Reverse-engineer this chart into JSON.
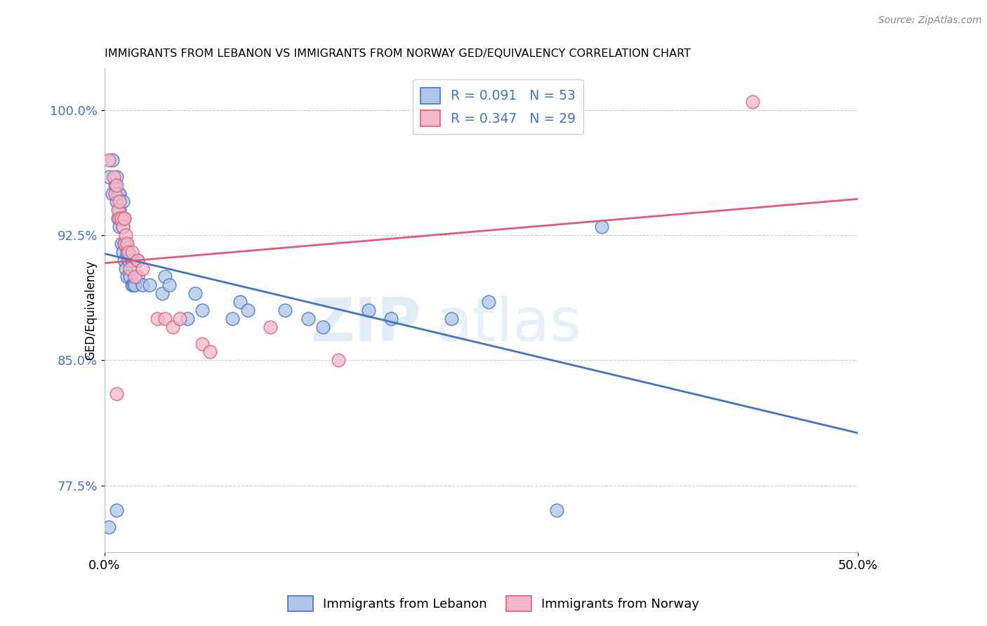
{
  "title": "IMMIGRANTS FROM LEBANON VS IMMIGRANTS FROM NORWAY GED/EQUIVALENCY CORRELATION CHART",
  "source": "Source: ZipAtlas.com",
  "ylabel": "GED/Equivalency",
  "xlim": [
    0.0,
    0.5
  ],
  "ylim": [
    0.735,
    1.025
  ],
  "ytick_labels": [
    "77.5%",
    "85.0%",
    "92.5%",
    "100.0%"
  ],
  "ytick_values": [
    0.775,
    0.85,
    0.925,
    1.0
  ],
  "xtick_labels": [
    "0.0%",
    "50.0%"
  ],
  "xtick_values": [
    0.0,
    0.5
  ],
  "legend_label1": "Immigrants from Lebanon",
  "legend_label2": "Immigrants from Norway",
  "R1": 0.091,
  "N1": 53,
  "R2": 0.347,
  "N2": 29,
  "color1": "#aec6e8",
  "color2": "#f4b8c8",
  "line_color1": "#4472c4",
  "line_color2": "#e05a7a",
  "watermark_zip": "ZIP",
  "watermark_atlas": "atlas",
  "lebanon_x": [
    0.003,
    0.005,
    0.005,
    0.007,
    0.008,
    0.008,
    0.009,
    0.009,
    0.01,
    0.01,
    0.01,
    0.011,
    0.011,
    0.012,
    0.012,
    0.012,
    0.013,
    0.013,
    0.013,
    0.014,
    0.014,
    0.015,
    0.015,
    0.016,
    0.017,
    0.018,
    0.018,
    0.019,
    0.02,
    0.022,
    0.022,
    0.025,
    0.03,
    0.038,
    0.04,
    0.043,
    0.055,
    0.06,
    0.065,
    0.085,
    0.09,
    0.095,
    0.12,
    0.135,
    0.145,
    0.175,
    0.19,
    0.23,
    0.255,
    0.33,
    0.003,
    0.008,
    0.3
  ],
  "lebanon_y": [
    0.96,
    0.97,
    0.95,
    0.955,
    0.945,
    0.96,
    0.935,
    0.95,
    0.93,
    0.94,
    0.95,
    0.92,
    0.935,
    0.915,
    0.93,
    0.945,
    0.91,
    0.92,
    0.935,
    0.905,
    0.92,
    0.9,
    0.915,
    0.91,
    0.9,
    0.895,
    0.91,
    0.895,
    0.895,
    0.9,
    0.91,
    0.895,
    0.895,
    0.89,
    0.9,
    0.895,
    0.875,
    0.89,
    0.88,
    0.875,
    0.885,
    0.88,
    0.88,
    0.875,
    0.87,
    0.88,
    0.875,
    0.875,
    0.885,
    0.93,
    0.75,
    0.76,
    0.76
  ],
  "norway_x": [
    0.003,
    0.006,
    0.007,
    0.008,
    0.009,
    0.01,
    0.01,
    0.011,
    0.012,
    0.013,
    0.013,
    0.014,
    0.015,
    0.016,
    0.017,
    0.018,
    0.02,
    0.022,
    0.025,
    0.035,
    0.04,
    0.045,
    0.05,
    0.065,
    0.07,
    0.11,
    0.155,
    0.43,
    0.008
  ],
  "norway_y": [
    0.97,
    0.96,
    0.95,
    0.955,
    0.94,
    0.945,
    0.935,
    0.935,
    0.93,
    0.92,
    0.935,
    0.925,
    0.92,
    0.915,
    0.905,
    0.915,
    0.9,
    0.91,
    0.905,
    0.875,
    0.875,
    0.87,
    0.875,
    0.86,
    0.855,
    0.87,
    0.85,
    1.005,
    0.83
  ]
}
